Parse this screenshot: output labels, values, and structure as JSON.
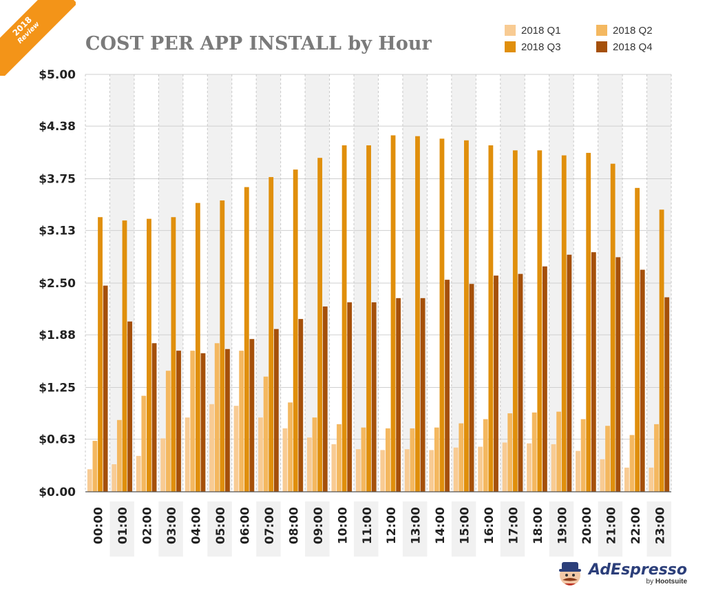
{
  "badge": {
    "year": "2018",
    "label": "Review"
  },
  "logo": {
    "brand": "AdEspresso",
    "by": "by",
    "partner": "Hootsuite"
  },
  "chart_data": {
    "type": "bar",
    "title": "COST PER APP INSTALL by Hour",
    "xlabel": "",
    "ylabel": "",
    "ylim": [
      0,
      5
    ],
    "yticks": [
      0,
      0.63,
      1.25,
      1.88,
      2.5,
      3.13,
      3.75,
      4.38,
      5.0
    ],
    "ytick_labels": [
      "$0.00",
      "$0.63",
      "$1.25",
      "$1.88",
      "$2.50",
      "$3.13",
      "$3.75",
      "$4.38",
      "$5.00"
    ],
    "legend_position": "top-right",
    "grid": true,
    "categories": [
      "00:00",
      "01:00",
      "02:00",
      "03:00",
      "04:00",
      "05:00",
      "06:00",
      "07:00",
      "08:00",
      "09:00",
      "10:00",
      "11:00",
      "12:00",
      "13:00",
      "14:00",
      "15:00",
      "16:00",
      "17:00",
      "18:00",
      "19:00",
      "20:00",
      "21:00",
      "22:00",
      "23:00"
    ],
    "series": [
      {
        "name": "2018 Q1",
        "color": "#f8cb93",
        "values": [
          0.27,
          0.33,
          0.43,
          0.64,
          0.89,
          1.05,
          1.03,
          0.89,
          0.76,
          0.65,
          0.57,
          0.51,
          0.5,
          0.51,
          0.5,
          0.53,
          0.54,
          0.59,
          0.58,
          0.57,
          0.49,
          0.39,
          0.29,
          0.29
        ]
      },
      {
        "name": "2018 Q2",
        "color": "#f4b860",
        "values": [
          0.61,
          0.86,
          1.15,
          1.45,
          1.69,
          1.78,
          1.69,
          1.38,
          1.07,
          0.89,
          0.81,
          0.77,
          0.76,
          0.76,
          0.77,
          0.82,
          0.87,
          0.94,
          0.95,
          0.96,
          0.87,
          0.79,
          0.68,
          0.81
        ]
      },
      {
        "name": "2018 Q3",
        "color": "#e08f0c",
        "values": [
          3.29,
          3.25,
          3.27,
          3.29,
          3.46,
          3.49,
          3.65,
          3.77,
          3.86,
          4.0,
          4.15,
          4.15,
          4.27,
          4.26,
          4.23,
          4.21,
          4.15,
          4.09,
          4.09,
          4.03,
          4.06,
          3.93,
          3.64,
          3.38
        ]
      },
      {
        "name": "2018 Q4",
        "color": "#a5500a",
        "values": [
          2.47,
          2.04,
          1.78,
          1.69,
          1.66,
          1.71,
          1.83,
          1.95,
          2.07,
          2.22,
          2.27,
          2.27,
          2.32,
          2.32,
          2.54,
          2.49,
          2.59,
          2.61,
          2.7,
          2.84,
          2.87,
          2.81,
          2.66,
          2.33
        ]
      }
    ]
  }
}
